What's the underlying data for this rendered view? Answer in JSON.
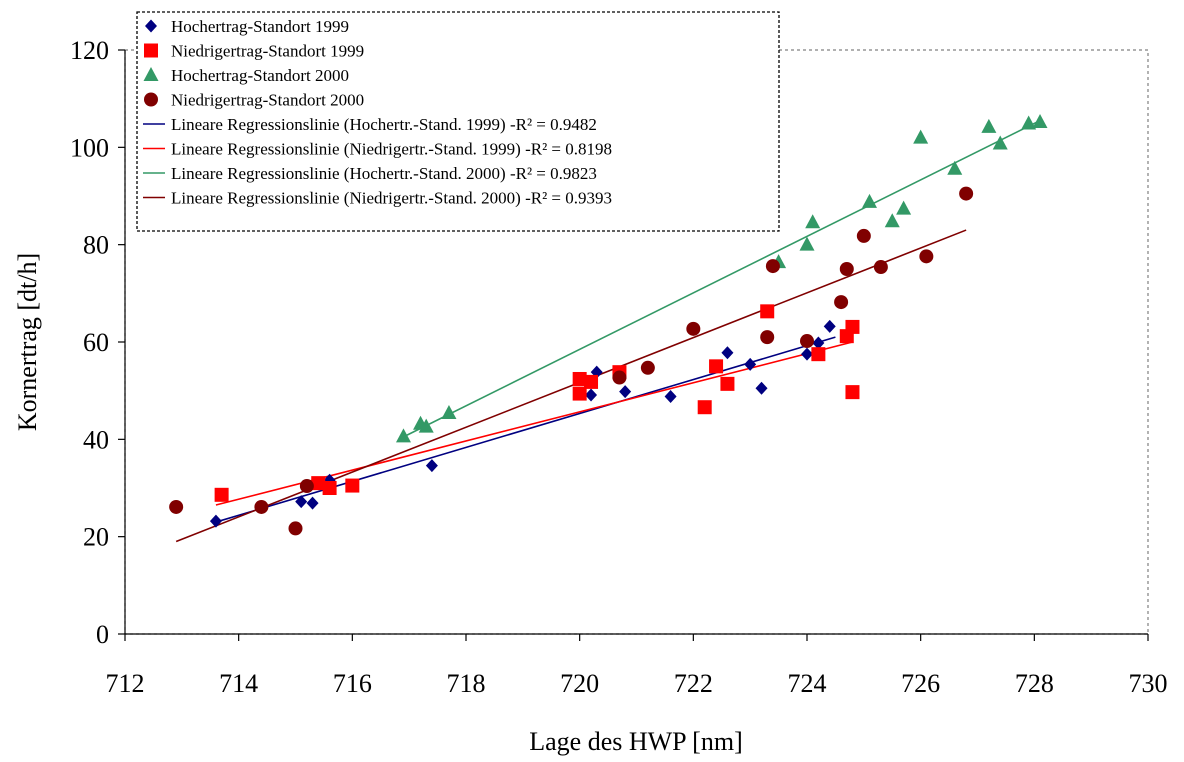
{
  "chart_data": {
    "type": "scatter",
    "xlabel": "Lage des HWP [nm]",
    "ylabel": "Kornertrag [dt/h]",
    "xlim": [
      712,
      730
    ],
    "ylim": [
      0,
      120
    ],
    "x_ticks": [
      712,
      714,
      716,
      718,
      720,
      722,
      724,
      726,
      728,
      730
    ],
    "y_ticks": [
      0,
      20,
      40,
      60,
      80,
      100,
      120
    ],
    "grid": false,
    "legend_position": "top-left",
    "series": [
      {
        "name": "Hochertrag-Standort 1999",
        "marker": "diamond",
        "color": "#000080",
        "points": [
          [
            713.6,
            23.2
          ],
          [
            715.1,
            27.2
          ],
          [
            715.3,
            26.9
          ],
          [
            715.6,
            31.6
          ],
          [
            717.4,
            34.6
          ],
          [
            720.2,
            49.1
          ],
          [
            720.3,
            53.8
          ],
          [
            720.8,
            49.8
          ],
          [
            721.6,
            48.8
          ],
          [
            722.6,
            57.8
          ],
          [
            723.0,
            55.4
          ],
          [
            723.2,
            50.5
          ],
          [
            724.0,
            57.5
          ],
          [
            724.2,
            59.8
          ],
          [
            724.4,
            63.2
          ]
        ]
      },
      {
        "name": "Niedrigertrag-Standort 1999",
        "marker": "square",
        "color": "#ff0000",
        "points": [
          [
            713.7,
            28.6
          ],
          [
            715.4,
            31.0
          ],
          [
            715.6,
            30.0
          ],
          [
            716.0,
            30.5
          ],
          [
            720.0,
            52.4
          ],
          [
            720.0,
            49.4
          ],
          [
            720.2,
            51.8
          ],
          [
            720.7,
            53.8
          ],
          [
            722.2,
            46.6
          ],
          [
            722.4,
            55.0
          ],
          [
            722.6,
            51.4
          ],
          [
            723.3,
            66.3
          ],
          [
            724.2,
            57.5
          ],
          [
            724.7,
            61.2
          ],
          [
            724.8,
            63.1
          ],
          [
            724.8,
            49.7
          ]
        ]
      },
      {
        "name": "Hochertrag-Standort 2000",
        "marker": "triangle",
        "color": "#339966",
        "points": [
          [
            716.9,
            40.6
          ],
          [
            717.2,
            43.2
          ],
          [
            717.3,
            42.6
          ],
          [
            717.7,
            45.4
          ],
          [
            723.5,
            76.4
          ],
          [
            724.0,
            80.0
          ],
          [
            724.1,
            84.6
          ],
          [
            725.1,
            88.8
          ],
          [
            725.5,
            84.8
          ],
          [
            725.7,
            87.4
          ],
          [
            726.0,
            102.0
          ],
          [
            726.6,
            95.6
          ],
          [
            727.2,
            104.2
          ],
          [
            727.4,
            100.8
          ],
          [
            727.9,
            104.9
          ],
          [
            728.1,
            105.2
          ]
        ]
      },
      {
        "name": "Niedrigertrag-Standort 2000",
        "marker": "circle",
        "color": "#800000",
        "points": [
          [
            712.9,
            26.1
          ],
          [
            714.4,
            26.1
          ],
          [
            715.0,
            21.7
          ],
          [
            715.2,
            30.4
          ],
          [
            720.7,
            52.7
          ],
          [
            721.2,
            54.7
          ],
          [
            722.0,
            62.7
          ],
          [
            723.3,
            61.0
          ],
          [
            723.4,
            75.6
          ],
          [
            724.0,
            60.2
          ],
          [
            724.6,
            68.2
          ],
          [
            724.7,
            75.0
          ],
          [
            725.0,
            81.8
          ],
          [
            725.3,
            75.4
          ],
          [
            726.1,
            77.6
          ],
          [
            726.8,
            90.5
          ]
        ]
      }
    ],
    "regression_lines": [
      {
        "name": "Lineare Regressionslinie (Hochertr.-Stand. 1999) -R² = 0.9482",
        "color": "#000080",
        "x": [
          713.6,
          724.5
        ],
        "y": [
          23.0,
          61.0
        ]
      },
      {
        "name": "Lineare Regressionslinie (Niedrigertr.-Stand. 1999) -R² = 0.8198",
        "color": "#ff0000",
        "x": [
          713.6,
          724.8
        ],
        "y": [
          26.5,
          60.0
        ]
      },
      {
        "name": "Lineare Regressionslinie (Hochertr.-Stand. 2000) -R² = 0.9823",
        "color": "#339966",
        "x": [
          716.9,
          728.1
        ],
        "y": [
          40.5,
          105.5
        ]
      },
      {
        "name": "Lineare Regressionslinie (Niedrigertr.-Stand. 2000) -R² = 0.9393",
        "color": "#800000",
        "x": [
          712.9,
          726.8
        ],
        "y": [
          19.0,
          83.0
        ]
      }
    ]
  }
}
